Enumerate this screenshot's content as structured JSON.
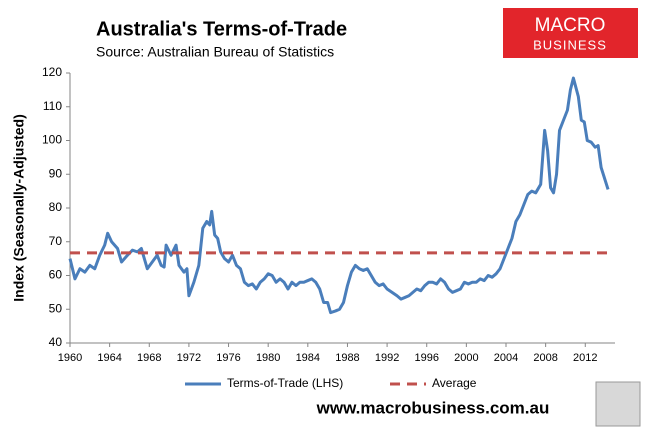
{
  "chart_data": {
    "type": "line",
    "title": "Australia's Terms-of-Trade",
    "subtitle": "Source: Australian Bureau of Statistics",
    "ylabel": "Index (Seasonally-Adjusted)",
    "logo": [
      "MACRO",
      "BUSINESS"
    ],
    "website": "www.macrobusiness.com.au",
    "xlim": [
      1960,
      2015
    ],
    "ylim": [
      40,
      120
    ],
    "xticks": [
      1960,
      1964,
      1968,
      1972,
      1976,
      1980,
      1984,
      1988,
      1992,
      1996,
      2000,
      2004,
      2008,
      2012
    ],
    "yticks": [
      40,
      50,
      60,
      70,
      80,
      90,
      100,
      110,
      120
    ],
    "grid": false,
    "legend": "bottom",
    "series": [
      {
        "name": "Terms-of-Trade (LHS)",
        "color": "#4a7ebb",
        "dash": false,
        "x": [
          1960,
          1960.5,
          1961,
          1961.5,
          1962,
          1962.5,
          1963,
          1963.5,
          1963.8,
          1964.2,
          1964.8,
          1965.2,
          1965.8,
          1966.3,
          1966.8,
          1967.2,
          1967.8,
          1968.3,
          1968.8,
          1969.2,
          1969.5,
          1969.7,
          1970.2,
          1970.7,
          1971,
          1971.5,
          1971.8,
          1972,
          1972.5,
          1973,
          1973.4,
          1973.8,
          1974.1,
          1974.3,
          1974.6,
          1974.9,
          1975.2,
          1975.6,
          1976,
          1976.4,
          1976.8,
          1977.2,
          1977.6,
          1978,
          1978.4,
          1978.8,
          1979.2,
          1979.6,
          1980,
          1980.4,
          1980.8,
          1981.2,
          1981.6,
          1982,
          1982.4,
          1982.8,
          1983.2,
          1983.6,
          1984,
          1984.4,
          1984.8,
          1985.2,
          1985.6,
          1986,
          1986.3,
          1986.8,
          1987.2,
          1987.6,
          1988,
          1988.4,
          1988.8,
          1989.2,
          1989.6,
          1990,
          1990.4,
          1990.8,
          1991.2,
          1991.6,
          1992,
          1992.5,
          1993,
          1993.4,
          1993.8,
          1994.2,
          1994.6,
          1995,
          1995.4,
          1995.8,
          1996.2,
          1996.6,
          1997,
          1997.4,
          1997.8,
          1998.2,
          1998.6,
          1999,
          1999.4,
          1999.8,
          2000.2,
          2000.6,
          2001,
          2001.4,
          2001.8,
          2002.2,
          2002.6,
          2003,
          2003.4,
          2003.8,
          2004.2,
          2004.6,
          2005,
          2005.4,
          2005.8,
          2006.2,
          2006.6,
          2007,
          2007.5,
          2007.9,
          2008.2,
          2008.5,
          2008.8,
          2009.1,
          2009.4,
          2009.8,
          2010.2,
          2010.5,
          2010.8,
          2011.3,
          2011.6,
          2011.9,
          2012.2,
          2012.6,
          2013,
          2013.3,
          2013.6,
          2014.3
        ],
        "values": [
          65,
          59,
          62,
          61,
          63,
          62,
          66,
          69,
          72.5,
          70,
          68,
          64,
          66,
          67.5,
          67,
          68,
          62,
          64,
          66,
          63,
          62.5,
          69,
          66,
          69,
          63,
          61,
          62,
          54,
          58,
          63,
          74,
          76,
          75,
          79,
          72,
          71,
          67,
          65,
          64,
          66,
          63,
          62,
          58,
          57,
          57.5,
          56,
          58,
          59,
          60.5,
          60,
          58,
          59,
          58,
          56,
          58,
          57,
          58,
          58,
          58.5,
          59,
          58,
          56,
          52,
          52,
          49,
          49.5,
          50,
          52,
          57,
          61,
          63,
          62,
          61.5,
          62,
          60,
          58,
          57,
          57.5,
          56,
          55,
          54,
          53,
          53.5,
          54,
          55,
          56,
          55.5,
          57,
          58,
          58,
          57.5,
          59,
          58,
          56,
          55,
          55.5,
          56,
          58,
          57.5,
          58,
          58,
          59,
          58.5,
          60,
          59.5,
          60.5,
          62,
          65,
          68,
          71,
          76,
          78,
          81,
          84,
          85,
          84.5,
          87,
          103,
          97,
          86,
          84.5,
          90,
          103,
          106,
          109,
          115,
          118.5,
          113,
          106,
          105.5,
          100,
          99.5,
          98,
          98.5,
          92,
          85.5
        ]
      },
      {
        "name": "Average",
        "color": "#c0504d",
        "dash": true,
        "x": [
          1960,
          2014.3
        ],
        "values": [
          66.7,
          66.7
        ]
      }
    ]
  }
}
